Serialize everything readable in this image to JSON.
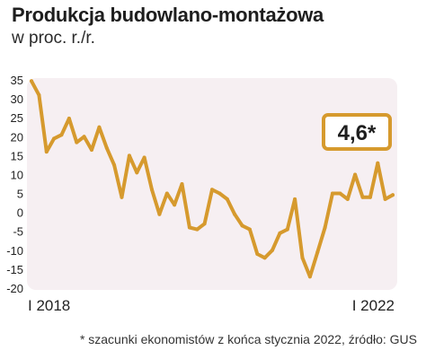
{
  "header": {
    "title": "Produkcja budowlano-montażowa",
    "subtitle": "w proc. r./r."
  },
  "footnote": "* szacunki ekonomistów z końca stycznia 2022, źródło: GUS",
  "colors": {
    "line": "#D69A2E",
    "plot_background": "#F6EFF2",
    "callout_border": "#D69A2E",
    "text": "#222222"
  },
  "chart_data": {
    "type": "line",
    "title": "Produkcja budowlano-montażowa",
    "subtitle": "w proc. r./r.",
    "xlabel": "",
    "ylabel": "",
    "ylim": [
      -20,
      35
    ],
    "yticks": [
      35,
      30,
      25,
      20,
      15,
      10,
      5,
      0,
      -5,
      -10,
      -15,
      -20
    ],
    "x_tick_labels": [
      {
        "index": 0,
        "label": "I 2018"
      },
      {
        "index": 48,
        "label": "I 2022"
      }
    ],
    "grid": false,
    "series": [
      {
        "values": [
          34.7,
          31.0,
          16.0,
          19.5,
          20.5,
          24.8,
          18.5,
          20.0,
          16.5,
          22.5,
          17.0,
          12.5,
          4.0,
          15.0,
          10.5,
          14.5,
          6.0,
          -0.5,
          5.0,
          2.0,
          7.5,
          -4.0,
          -4.5,
          -3.0,
          6.0,
          5.0,
          3.5,
          -0.5,
          -3.5,
          -4.5,
          -11.0,
          -12.0,
          -10.0,
          -5.5,
          -4.5,
          3.5,
          -12.0,
          -17.0,
          -10.5,
          -4.0,
          5.0,
          5.0,
          3.5,
          10.0,
          4.0,
          4.0,
          13.0,
          3.5,
          4.6
        ]
      }
    ],
    "annotations": [
      {
        "text": "4,6*",
        "index": 48,
        "value": 4.6
      }
    ]
  }
}
